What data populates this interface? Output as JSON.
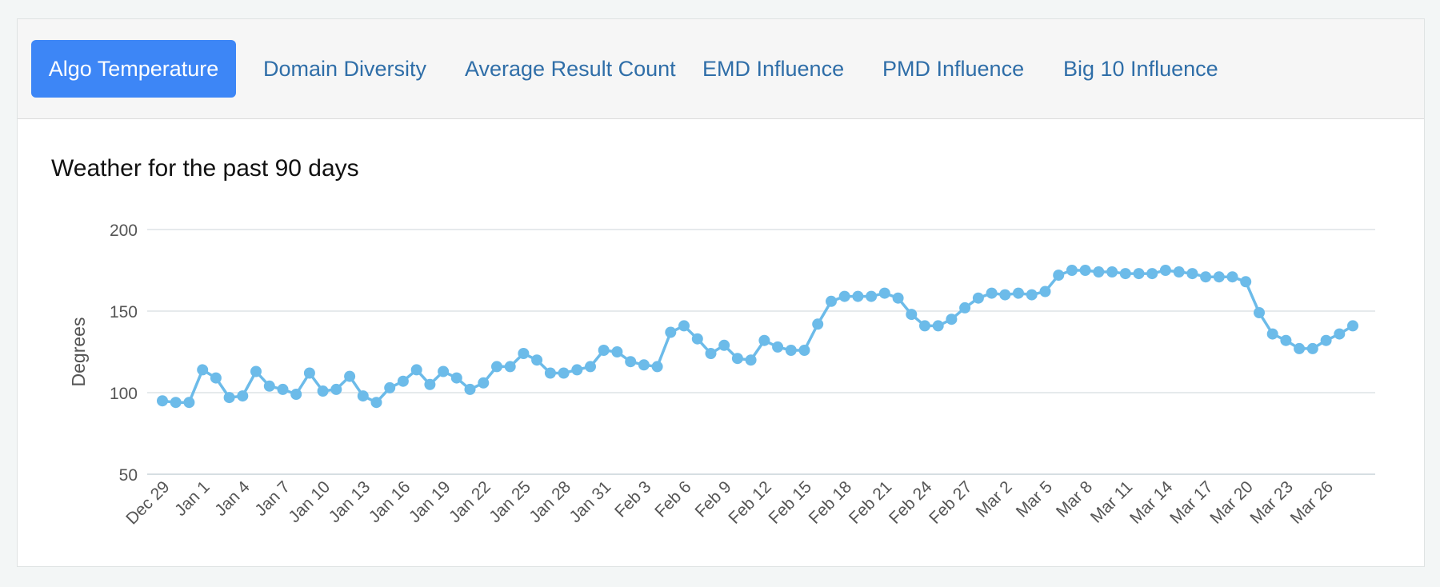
{
  "tabs": [
    {
      "label": "Algo Temperature",
      "active": true
    },
    {
      "label": "Domain Diversity",
      "active": false
    },
    {
      "label": "Average Result Count",
      "active": false
    },
    {
      "label": "EMD Influence",
      "active": false
    },
    {
      "label": "PMD Influence",
      "active": false
    },
    {
      "label": "Big 10 Influence",
      "active": false
    }
  ],
  "colors": {
    "series": "#6cbbe9",
    "active_tab": "#3d86f6",
    "tab_text": "#2f6ea8",
    "grid": "#dde3e6"
  },
  "chart_data": {
    "type": "line",
    "title": "Weather for the past 90 days",
    "xlabel": "",
    "ylabel": "Degrees",
    "ylim": [
      50,
      200
    ],
    "yticks": [
      50,
      100,
      150,
      200
    ],
    "grid": true,
    "x_tick_labels": [
      "Dec 29",
      "Jan 1",
      "Jan 4",
      "Jan 7",
      "Jan 10",
      "Jan 13",
      "Jan 16",
      "Jan 19",
      "Jan 22",
      "Jan 25",
      "Jan 28",
      "Jan 31",
      "Feb 3",
      "Feb 6",
      "Feb 9",
      "Feb 12",
      "Feb 15",
      "Feb 18",
      "Feb 21",
      "Feb 24",
      "Feb 27",
      "Mar 2",
      "Mar 5",
      "Mar 8",
      "Mar 11",
      "Mar 14",
      "Mar 17",
      "Mar 20",
      "Mar 23",
      "Mar 26"
    ],
    "x_tick_every": 3,
    "series": [
      {
        "values": [
          95,
          94,
          94,
          114,
          109,
          97,
          98,
          113,
          104,
          102,
          99,
          112,
          101,
          102,
          110,
          98,
          94,
          103,
          107,
          114,
          105,
          113,
          109,
          102,
          106,
          116,
          116,
          124,
          120,
          112,
          112,
          114,
          116,
          126,
          125,
          119,
          117,
          116,
          137,
          141,
          133,
          124,
          129,
          121,
          120,
          132,
          128,
          126,
          126,
          142,
          156,
          159,
          159,
          159,
          161,
          158,
          148,
          141,
          141,
          145,
          152,
          158,
          161,
          160,
          161,
          160,
          162,
          172,
          175,
          175,
          174,
          174,
          173,
          173,
          173,
          175,
          174,
          173,
          171,
          171,
          171,
          168,
          149,
          136,
          132,
          127,
          127,
          132,
          136,
          141
        ]
      }
    ]
  }
}
